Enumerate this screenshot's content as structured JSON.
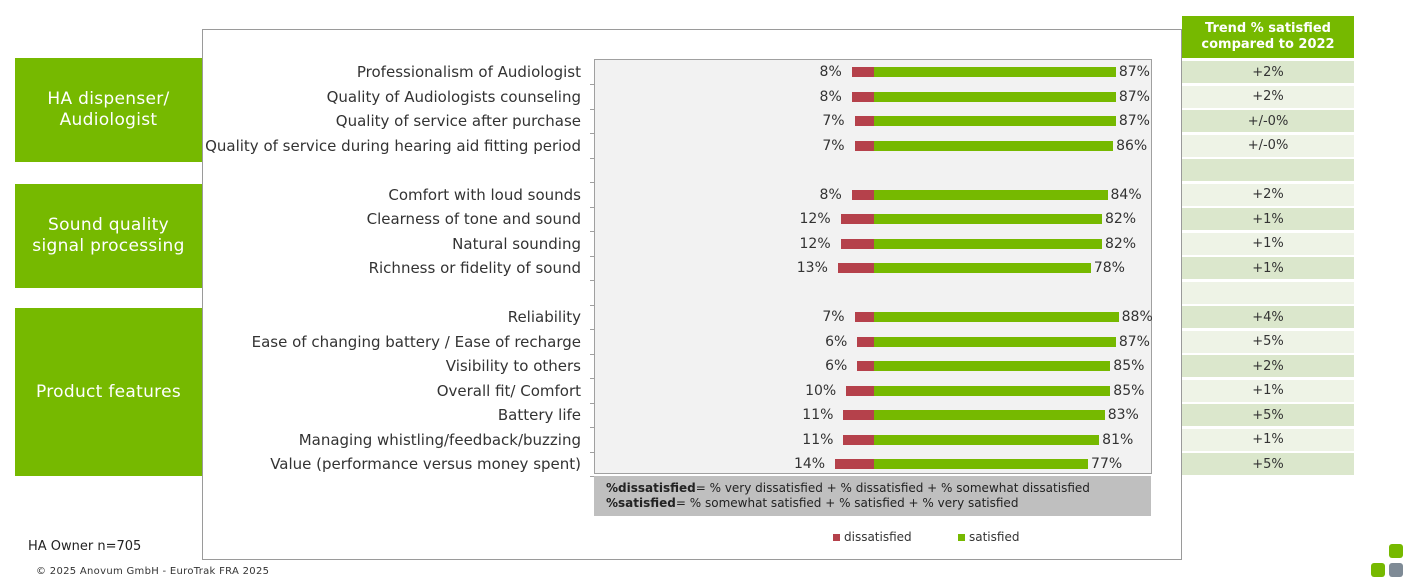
{
  "groups": [
    {
      "label": "HA dispenser/ Audiologist"
    },
    {
      "label": "Sound quality signal processing"
    },
    {
      "label": "Product features"
    }
  ],
  "trend_header": "Trend % satisfied compared to 2022",
  "definitions": {
    "dis_term": "%dissatisfied",
    "dis_def": "= % very dissatisfied + % dissatisfied + % somewhat dissatisfied",
    "sat_term": "%satisfied",
    "sat_def": "= % somewhat satisfied + % satisfied + % very satisfied"
  },
  "legend": {
    "dissatisfied": "dissatisfied",
    "satisfied": "satisfied"
  },
  "base_note": "HA Owner n=705",
  "copyright": "© 2025 Anovum GmbH - EuroTrak FRA 2025",
  "colors": {
    "satisfied": "#76b900",
    "dissatisfied": "#b5414b",
    "plot_bg": "#f2f2f2",
    "trend_even": "#dbe7cc",
    "trend_odd": "#eef3e6"
  },
  "chart_data": {
    "type": "bar",
    "orientation": "horizontal-diverging",
    "categories": [
      "Professionalism of Audiologist",
      "Quality of Audiologists counseling",
      "Quality of service after purchase",
      "Quality of service during hearing aid fitting period",
      "",
      "Comfort with  loud sounds",
      "Clearness of tone and sound",
      "Natural sounding",
      "Richness or fidelity of sound",
      "",
      "Reliability",
      "Ease of changing battery / Ease of recharge",
      "Visibility to others",
      "Overall fit/ Comfort",
      "Battery life",
      "Managing whistling/feedback/buzzing",
      "Value (performance versus money spent)"
    ],
    "series": [
      {
        "name": "dissatisfied",
        "values": [
          8,
          8,
          7,
          7,
          null,
          8,
          12,
          12,
          13,
          null,
          7,
          6,
          6,
          10,
          11,
          11,
          14
        ]
      },
      {
        "name": "satisfied",
        "values": [
          87,
          87,
          87,
          86,
          null,
          84,
          82,
          82,
          78,
          null,
          88,
          87,
          85,
          85,
          83,
          81,
          77
        ]
      }
    ],
    "value_labels": {
      "dissatisfied": [
        "8%",
        "8%",
        "7%",
        "7%",
        "",
        "8%",
        "12%",
        "12%",
        "13%",
        "",
        "7%",
        "6%",
        "6%",
        "10%",
        "11%",
        "11%",
        "14%"
      ],
      "satisfied": [
        "87%",
        "87%",
        "87%",
        "86%",
        "",
        "84%",
        "82%",
        "82%",
        "78%",
        "",
        "88%",
        "87%",
        "85%",
        "85%",
        "83%",
        "81%",
        "77%"
      ]
    },
    "trend": [
      "+2%",
      "+2%",
      "+/-0%",
      "+/-0%",
      "",
      "+2%",
      "+1%",
      "+1%",
      "+1%",
      "",
      "+4%",
      "+5%",
      "+2%",
      "+1%",
      "+5%",
      "+1%",
      "+5%"
    ],
    "unit": "%"
  }
}
